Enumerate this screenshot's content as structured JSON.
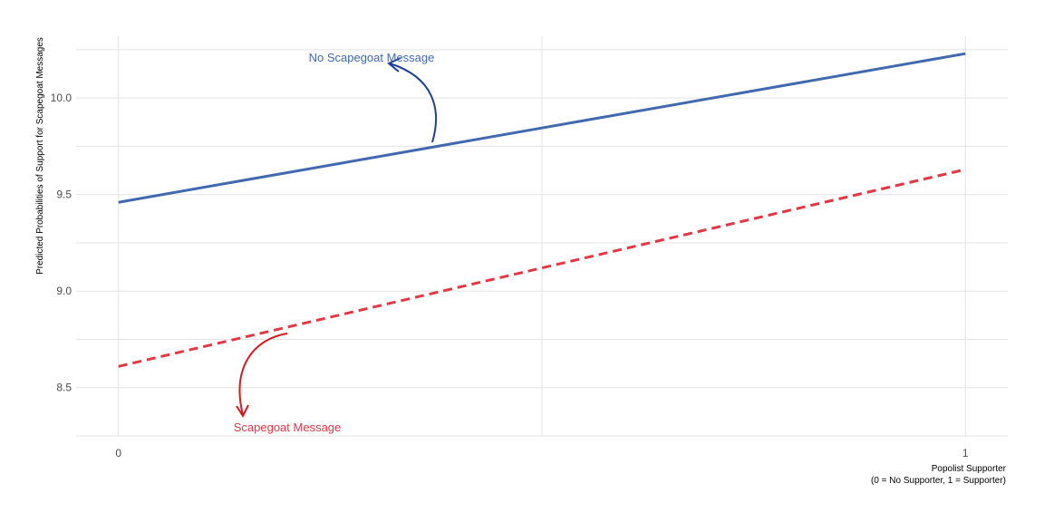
{
  "chart_data": {
    "type": "line",
    "title": "",
    "xlabel": "Popolist Supporter",
    "xlabel_line2": "(0 = No Supporter, 1 = Supporter)",
    "ylabel": "Predicted Probabilities of Support for Scapegoat Messages",
    "x": [
      0,
      1
    ],
    "xlim": [
      -0.05,
      1.05
    ],
    "ylim": [
      8.25,
      10.32
    ],
    "x_ticks": [
      0,
      1
    ],
    "x_tick_labels": [
      "0",
      "1"
    ],
    "y_ticks": [
      8.5,
      9.0,
      9.5,
      10.0
    ],
    "y_tick_labels": [
      "8.5",
      "9.0",
      "9.5",
      "10.0"
    ],
    "grid": true,
    "legend": "none",
    "series": [
      {
        "name": "No Scapegoat Message",
        "values": [
          9.46,
          10.23
        ],
        "color": "#4169b0",
        "dash": "solid"
      },
      {
        "name": "Scapegoat Message",
        "values": [
          8.61,
          9.63
        ],
        "color": "#e23744",
        "dash": "dashed"
      }
    ],
    "annotations": [
      {
        "text": "No Scapegoat Message",
        "x": 0.3,
        "y": 10.19,
        "color": "#4169b0",
        "arrow_color": "#1f3f99"
      },
      {
        "text": "Scapegoat Message",
        "x": 0.2,
        "y": 8.29,
        "color": "#e23744",
        "arrow_color": "#d71920"
      }
    ]
  }
}
